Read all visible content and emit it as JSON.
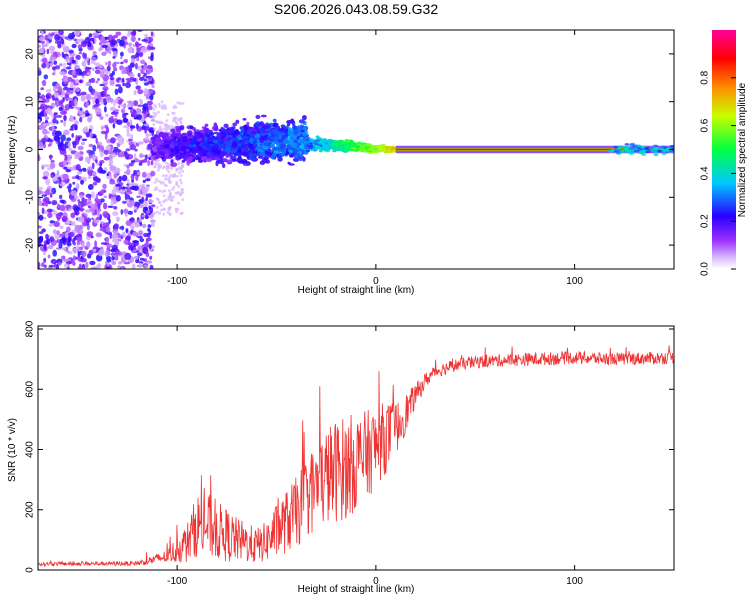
{
  "figure": {
    "title": "S206.2026.043.08.59.G32"
  },
  "chart_data": [
    {
      "type": "heatmap",
      "title": "S206.2026.043.08.59.G32",
      "xlabel": "Height of straight line (km)",
      "ylabel": "Frequency (Hz)",
      "xlim": [
        -170,
        150
      ],
      "ylim": [
        -25,
        25
      ],
      "xticks": [
        -100,
        0,
        100
      ],
      "xtick_labels": [
        "-100",
        "0",
        "100"
      ],
      "yticks": [
        -20,
        -10,
        0,
        10,
        20
      ],
      "ytick_labels": [
        "-20",
        "-10",
        "0",
        "10",
        "20"
      ],
      "colorbar": {
        "label": "Normalized spectral amplitude",
        "range": [
          0.0,
          1.0
        ],
        "ticks": [
          0.0,
          0.2,
          0.4,
          0.6,
          0.8
        ],
        "tick_labels": [
          "0.0",
          "0.2",
          "0.4",
          "0.6",
          "0.8"
        ],
        "colormap": [
          "#ffffff",
          "#e8d8ff",
          "#9b30ff",
          "#3000ff",
          "#00c8ff",
          "#00ff00",
          "#ffff00",
          "#ff8000",
          "#ff0000",
          "#ff00a0"
        ]
      },
      "features": {
        "noise_region_x": [
          -170,
          -112
        ],
        "scatter_region_x": [
          -112,
          -35
        ],
        "transition_region_x": [
          -35,
          10
        ],
        "carrier_line_x": [
          10,
          150
        ],
        "carrier_frequency_hz": 0,
        "carrier_amplitude": 0.95
      }
    },
    {
      "type": "line",
      "title": "",
      "xlabel": "Height of straight line (km)",
      "ylabel": "SNR (10 * v/v)",
      "xlim": [
        -170,
        150
      ],
      "ylim": [
        0,
        810
      ],
      "xticks": [
        -100,
        0,
        100
      ],
      "xtick_labels": [
        "-100",
        "0",
        "100"
      ],
      "yticks": [
        0,
        200,
        400,
        600,
        800
      ],
      "ytick_labels": [
        "0",
        "200",
        "400",
        "600",
        "800"
      ],
      "series": [
        {
          "name": "SNR",
          "color": "#ee3333",
          "profile_x": [
            -170,
            -120,
            -105,
            -95,
            -90,
            -85,
            -80,
            -75,
            -70,
            -60,
            -55,
            -50,
            -45,
            -40,
            -35,
            -30,
            -25,
            -20,
            -15,
            -10,
            -5,
            0,
            5,
            10,
            15,
            20,
            25,
            30,
            40,
            50,
            60,
            80,
            100,
            120,
            150
          ],
          "profile_mean": [
            20,
            22,
            45,
            90,
            150,
            150,
            130,
            115,
            100,
            80,
            95,
            130,
            160,
            190,
            240,
            275,
            310,
            330,
            340,
            360,
            380,
            410,
            440,
            470,
            520,
            580,
            630,
            660,
            680,
            690,
            695,
            700,
            705,
            700,
            705
          ],
          "profile_spread": [
            8,
            10,
            30,
            90,
            140,
            150,
            130,
            120,
            100,
            80,
            90,
            120,
            140,
            160,
            180,
            200,
            220,
            230,
            230,
            220,
            200,
            180,
            160,
            120,
            90,
            50,
            35,
            30,
            28,
            28,
            28,
            30,
            28,
            28,
            28
          ]
        }
      ]
    }
  ]
}
